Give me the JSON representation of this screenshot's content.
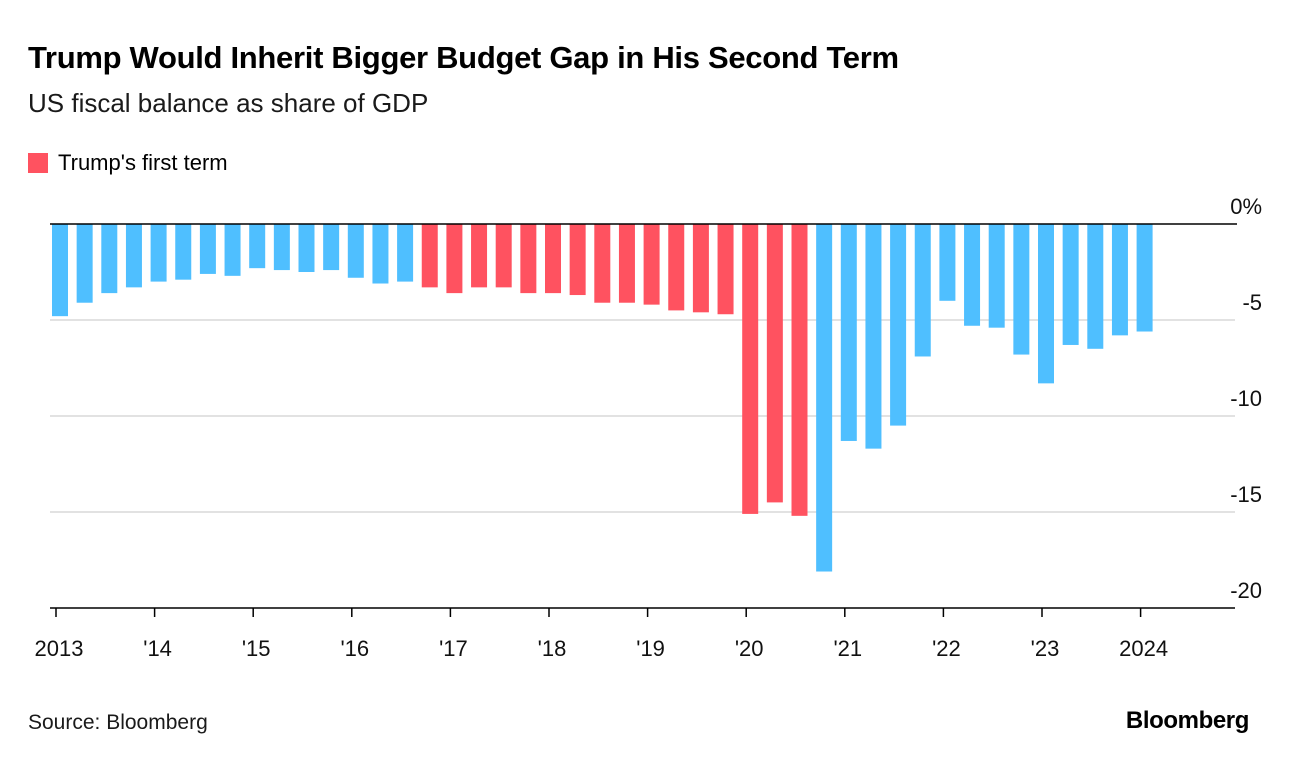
{
  "header": {
    "title": "Trump Would Inherit Bigger Budget Gap in His Second Term",
    "subtitle": "US fiscal balance as share of GDP"
  },
  "legend": {
    "label": "Trump's first term",
    "color": "#ff5260"
  },
  "footer": {
    "source": "Source: Bloomberg",
    "brand": "Bloomberg"
  },
  "colors": {
    "default_bar": "#4fbfff",
    "highlight_bar": "#ff5260",
    "grid": "#d9d9d9",
    "axis": "#000000"
  },
  "chart_data": {
    "type": "bar",
    "x_tick_labels": [
      "2013",
      "'14",
      "'15",
      "'16",
      "'17",
      "'18",
      "'19",
      "'20",
      "'21",
      "'22",
      "'23",
      "2024"
    ],
    "y_tick_labels": [
      "0%",
      "-5",
      "-10",
      "-15",
      "-20"
    ],
    "y_ticks": [
      0,
      -5,
      -10,
      -15,
      -20
    ],
    "ylim": [
      -20,
      0
    ],
    "grid": true,
    "legend_position": "top-left",
    "bars": [
      {
        "period": "2013 Q1",
        "value": -4.8,
        "first_term": false
      },
      {
        "period": "2013 Q2",
        "value": -4.1,
        "first_term": false
      },
      {
        "period": "2013 Q3",
        "value": -3.6,
        "first_term": false
      },
      {
        "period": "2013 Q4",
        "value": -3.3,
        "first_term": false
      },
      {
        "period": "2014 Q1",
        "value": -3.0,
        "first_term": false
      },
      {
        "period": "2014 Q2",
        "value": -2.9,
        "first_term": false
      },
      {
        "period": "2014 Q3",
        "value": -2.6,
        "first_term": false
      },
      {
        "period": "2014 Q4",
        "value": -2.7,
        "first_term": false
      },
      {
        "period": "2015 Q1",
        "value": -2.3,
        "first_term": false
      },
      {
        "period": "2015 Q2",
        "value": -2.4,
        "first_term": false
      },
      {
        "period": "2015 Q3",
        "value": -2.5,
        "first_term": false
      },
      {
        "period": "2015 Q4",
        "value": -2.4,
        "first_term": false
      },
      {
        "period": "2016 Q1",
        "value": -2.8,
        "first_term": false
      },
      {
        "period": "2016 Q2",
        "value": -3.1,
        "first_term": false
      },
      {
        "period": "2016 Q3",
        "value": -3.0,
        "first_term": false
      },
      {
        "period": "2016 Q4",
        "value": -3.3,
        "first_term": true
      },
      {
        "period": "2017 Q1",
        "value": -3.6,
        "first_term": true
      },
      {
        "period": "2017 Q2",
        "value": -3.3,
        "first_term": true
      },
      {
        "period": "2017 Q3",
        "value": -3.3,
        "first_term": true
      },
      {
        "period": "2017 Q4",
        "value": -3.6,
        "first_term": true
      },
      {
        "period": "2018 Q1",
        "value": -3.6,
        "first_term": true
      },
      {
        "period": "2018 Q2",
        "value": -3.7,
        "first_term": true
      },
      {
        "period": "2018 Q3",
        "value": -4.1,
        "first_term": true
      },
      {
        "period": "2018 Q4",
        "value": -4.1,
        "first_term": true
      },
      {
        "period": "2019 Q1",
        "value": -4.2,
        "first_term": true
      },
      {
        "period": "2019 Q2",
        "value": -4.5,
        "first_term": true
      },
      {
        "period": "2019 Q3",
        "value": -4.6,
        "first_term": true
      },
      {
        "period": "2019 Q4",
        "value": -4.7,
        "first_term": true
      },
      {
        "period": "2020 Q1",
        "value": -15.1,
        "first_term": true
      },
      {
        "period": "2020 Q2",
        "value": -14.5,
        "first_term": true
      },
      {
        "period": "2020 Q3",
        "value": -15.2,
        "first_term": true
      },
      {
        "period": "2020 Q4",
        "value": -18.1,
        "first_term": false
      },
      {
        "period": "2021 Q1",
        "value": -11.3,
        "first_term": false
      },
      {
        "period": "2021 Q2",
        "value": -11.7,
        "first_term": false
      },
      {
        "period": "2021 Q3",
        "value": -10.5,
        "first_term": false
      },
      {
        "period": "2021 Q4",
        "value": -6.9,
        "first_term": false
      },
      {
        "period": "2022 Q1",
        "value": -4.0,
        "first_term": false
      },
      {
        "period": "2022 Q2",
        "value": -5.3,
        "first_term": false
      },
      {
        "period": "2022 Q3",
        "value": -5.4,
        "first_term": false
      },
      {
        "period": "2022 Q4",
        "value": -6.8,
        "first_term": false
      },
      {
        "period": "2023 Q1",
        "value": -8.3,
        "first_term": false
      },
      {
        "period": "2023 Q2",
        "value": -6.3,
        "first_term": false
      },
      {
        "period": "2023 Q3",
        "value": -6.5,
        "first_term": false
      },
      {
        "period": "2023 Q4",
        "value": -5.8,
        "first_term": false
      },
      {
        "period": "2024 Q1",
        "value": -5.6,
        "first_term": false
      }
    ]
  }
}
